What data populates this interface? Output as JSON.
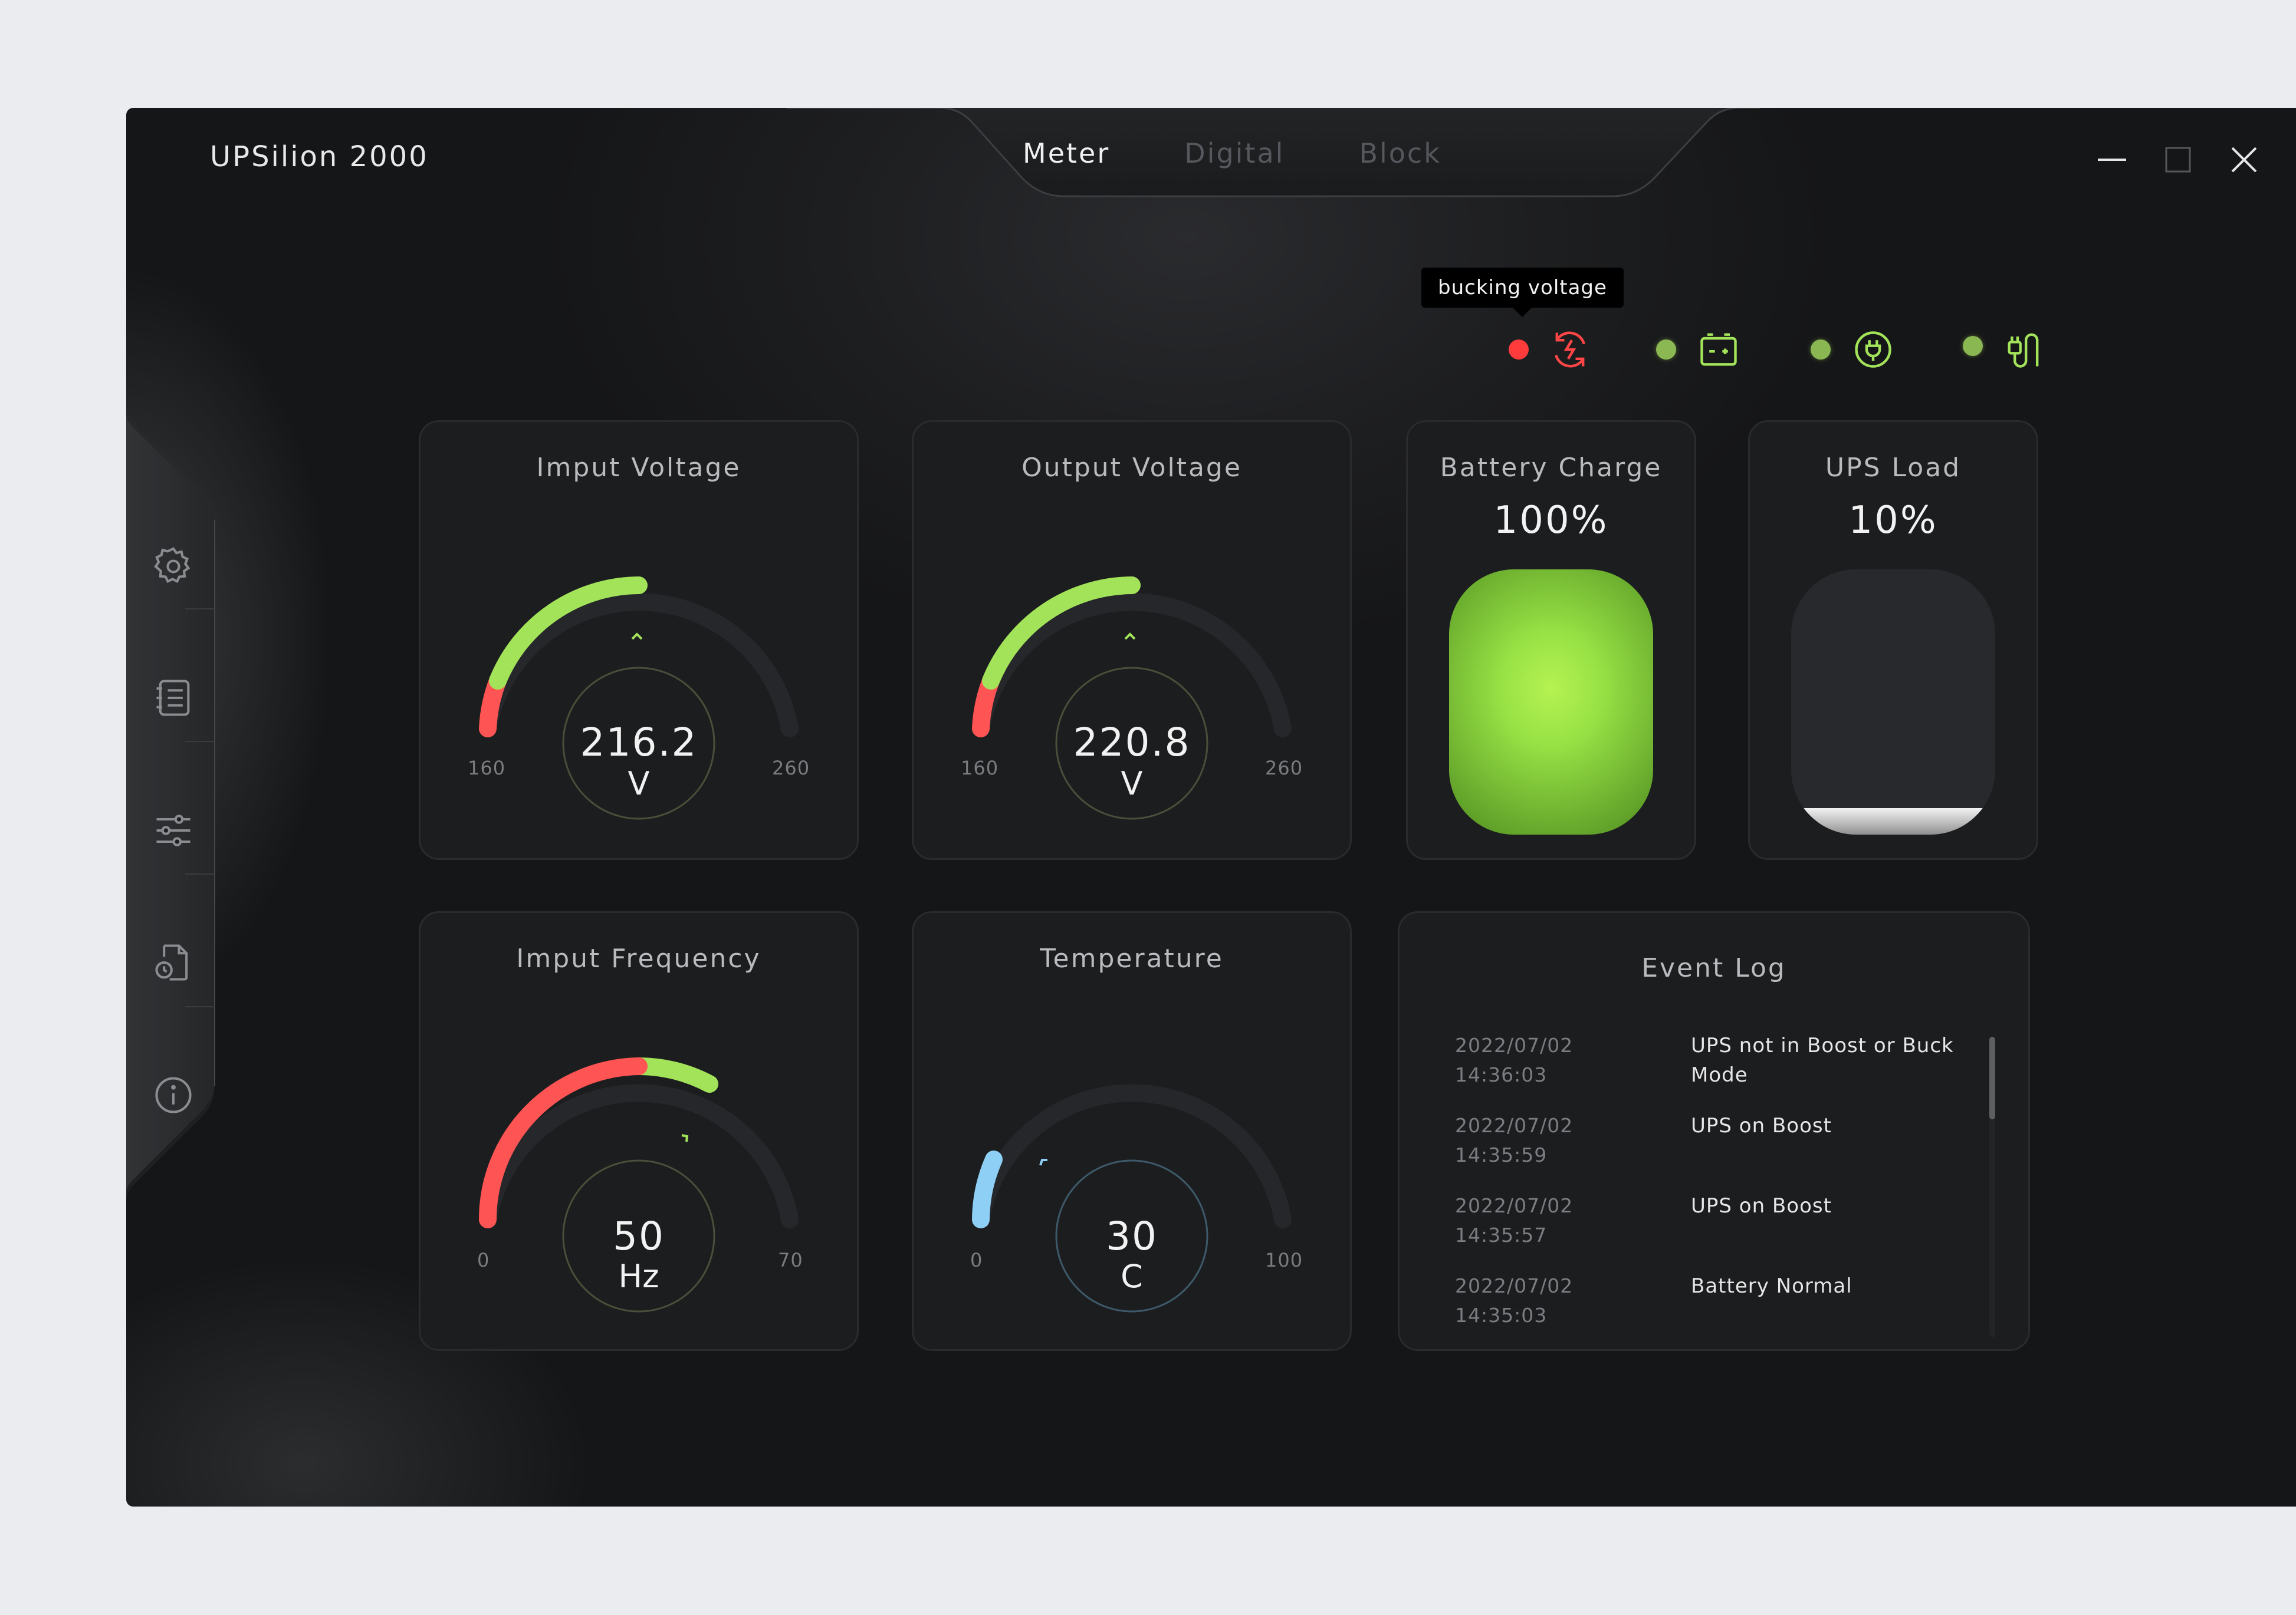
{
  "app": {
    "title": "UPSilion 2000"
  },
  "tabs": [
    {
      "label": "Meter",
      "active": true
    },
    {
      "label": "Digital",
      "active": false
    },
    {
      "label": "Block",
      "active": false
    }
  ],
  "window_controls": [
    "minimize-icon",
    "maximize-icon",
    "close-icon"
  ],
  "sidebar": {
    "items": [
      {
        "icon": "gear-icon"
      },
      {
        "icon": "list-icon"
      },
      {
        "icon": "sliders-icon"
      },
      {
        "icon": "file-clock-icon"
      },
      {
        "icon": "info-icon"
      }
    ]
  },
  "status": {
    "tooltip": "bucking voltage",
    "indicators": [
      {
        "icon": "voltage-regulation-icon",
        "state": "red"
      },
      {
        "icon": "battery-icon",
        "state": "green"
      },
      {
        "icon": "plug-icon",
        "state": "green"
      },
      {
        "icon": "cable-icon",
        "state": "green"
      }
    ]
  },
  "colors": {
    "accent_green": "#a3e35a",
    "alert_red": "#ff5454",
    "temp_blue": "#8ecff5",
    "background": "#1c1d1f"
  },
  "gauges": {
    "input_voltage": {
      "title": "Imput Voltage",
      "value": "216.2",
      "unit": "V",
      "min": "160",
      "max": "260"
    },
    "output_voltage": {
      "title": "Output Voltage",
      "value": "220.8",
      "unit": "V",
      "min": "160",
      "max": "260"
    },
    "input_frequency": {
      "title": "Imput Frequency",
      "value": "50",
      "unit": "Hz",
      "min": "0",
      "max": "70"
    },
    "temperature": {
      "title": "Temperature",
      "value": "30",
      "unit": "C",
      "min": "0",
      "max": "100"
    }
  },
  "battery": {
    "title": "Battery Charge",
    "value": "100%",
    "level": 1.0
  },
  "ups_load": {
    "title": "UPS Load",
    "value": "10%",
    "level": 0.1
  },
  "event_log": {
    "title": "Event Log",
    "entries": [
      {
        "date": "2022/07/02",
        "time": "14:36:03",
        "message": "UPS not in Boost or Buck Mode"
      },
      {
        "date": "2022/07/02",
        "time": "14:35:59",
        "message": "UPS on Boost"
      },
      {
        "date": "2022/07/02",
        "time": "14:35:57",
        "message": "UPS on Boost"
      },
      {
        "date": "2022/07/02",
        "time": "14:35:03",
        "message": "Battery Normal"
      }
    ]
  }
}
